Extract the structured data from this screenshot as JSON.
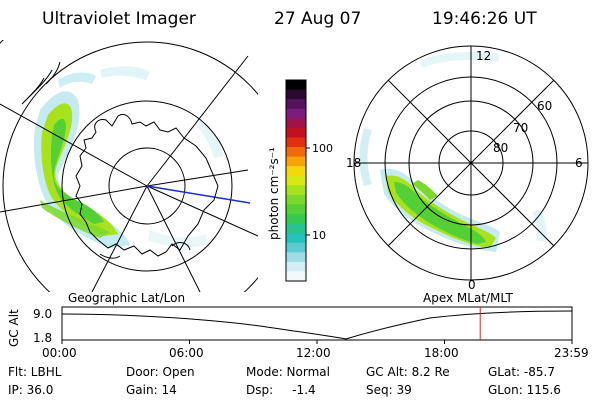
{
  "header": {
    "title": "Ultraviolet Imager",
    "date": "27 Aug 07",
    "time": "19:46:26 UT"
  },
  "geo_panel": {
    "label": "Geographic Lat/Lon"
  },
  "apex_panel": {
    "label": "Apex MLat/MLT",
    "mlt_labels": [
      "12",
      "18",
      "6",
      "0"
    ],
    "lat_labels": [
      "60",
      "70",
      "80"
    ]
  },
  "colorbar": {
    "unit_label": "photon cm⁻²s⁻¹",
    "ticks": [
      "100",
      "10"
    ],
    "colors": [
      "#000000",
      "#2a0a30",
      "#55125e",
      "#7e1c7e",
      "#a0124a",
      "#c21020",
      "#e03010",
      "#f06a0a",
      "#f6a506",
      "#f4d80c",
      "#d8e815",
      "#a8e21e",
      "#7cd82a",
      "#54cf35",
      "#35c952",
      "#28c48c",
      "#24c2b8",
      "#5ccad0",
      "#9fdbe4",
      "#d4eef3",
      "#f2f9fb"
    ]
  },
  "timeline": {
    "y_axis_label": "GC Alt",
    "y_ticks": [
      "9.0",
      "1.8"
    ],
    "x_ticks": [
      "00:00",
      "06:00",
      "12:00",
      "18:00",
      "23:59"
    ],
    "current_time_fraction": 0.82,
    "marker_color": "#e02020"
  },
  "footer": {
    "row1": [
      "Flt: LBHL",
      "Door: Open",
      "Mode: Normal",
      "GC Alt: 8.2 Re",
      "GLat: -85.7"
    ],
    "row2": [
      "IP: 36.0",
      "Gain: 14",
      "Dsp:     -1.4",
      "Seq: 39",
      "GLon: 115.6"
    ]
  }
}
